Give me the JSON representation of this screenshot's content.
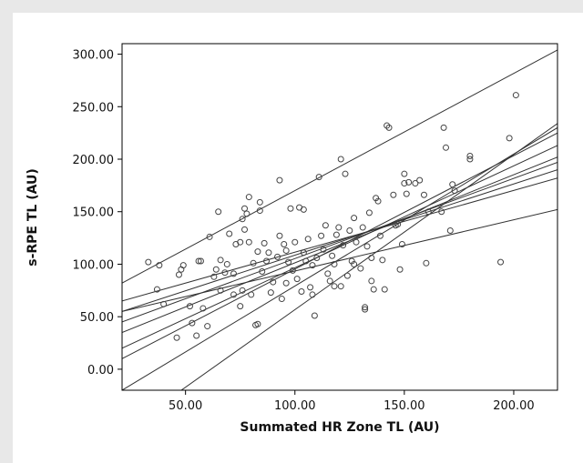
{
  "chart_data": {
    "type": "scatter",
    "xlabel": "Summated HR Zone TL (AU)",
    "ylabel": "s-RPE TL (AU)",
    "xlim": [
      21,
      220
    ],
    "ylim": [
      -20,
      310
    ],
    "x_ticks": [
      "50.00",
      "100.00",
      "150.00",
      "200.00"
    ],
    "x_tick_values": [
      50,
      100,
      150,
      200
    ],
    "y_ticks": [
      "0.00",
      "50.00",
      "100.00",
      "150.00",
      "200.00",
      "250.00",
      "300.00"
    ],
    "y_tick_values": [
      0,
      50,
      100,
      150,
      200,
      250,
      300
    ],
    "grid": false,
    "points": [
      [
        33,
        102
      ],
      [
        37,
        76
      ],
      [
        38,
        99
      ],
      [
        40,
        62
      ],
      [
        46,
        30
      ],
      [
        47,
        90
      ],
      [
        48,
        95
      ],
      [
        49,
        99
      ],
      [
        52,
        60
      ],
      [
        53,
        44
      ],
      [
        55,
        32
      ],
      [
        56,
        103
      ],
      [
        57,
        103
      ],
      [
        58,
        58
      ],
      [
        60,
        41
      ],
      [
        61,
        126
      ],
      [
        63,
        88
      ],
      [
        64,
        95
      ],
      [
        65,
        150
      ],
      [
        66,
        104
      ],
      [
        66,
        75
      ],
      [
        68,
        92
      ],
      [
        69,
        100
      ],
      [
        70,
        129
      ],
      [
        72,
        91
      ],
      [
        72,
        71
      ],
      [
        73,
        119
      ],
      [
        75,
        121
      ],
      [
        75,
        60
      ],
      [
        76,
        75
      ],
      [
        76,
        143
      ],
      [
        77,
        133
      ],
      [
        77,
        153
      ],
      [
        78,
        148
      ],
      [
        79,
        164
      ],
      [
        79,
        121
      ],
      [
        80,
        71
      ],
      [
        81,
        101
      ],
      [
        82,
        42
      ],
      [
        83,
        43
      ],
      [
        83,
        112
      ],
      [
        84,
        151
      ],
      [
        84,
        159
      ],
      [
        85,
        93
      ],
      [
        86,
        120
      ],
      [
        87,
        103
      ],
      [
        88,
        111
      ],
      [
        89,
        73
      ],
      [
        90,
        83
      ],
      [
        92,
        107
      ],
      [
        93,
        127
      ],
      [
        93,
        180
      ],
      [
        94,
        67
      ],
      [
        95,
        119
      ],
      [
        96,
        113
      ],
      [
        96,
        82
      ],
      [
        97,
        102
      ],
      [
        98,
        153
      ],
      [
        99,
        94
      ],
      [
        100,
        121
      ],
      [
        101,
        86
      ],
      [
        102,
        154
      ],
      [
        103,
        74
      ],
      [
        104,
        152
      ],
      [
        104,
        111
      ],
      [
        105,
        103
      ],
      [
        106,
        124
      ],
      [
        107,
        78
      ],
      [
        108,
        71
      ],
      [
        108,
        99
      ],
      [
        109,
        51
      ],
      [
        110,
        106
      ],
      [
        111,
        183
      ],
      [
        112,
        127
      ],
      [
        113,
        114
      ],
      [
        114,
        137
      ],
      [
        115,
        91
      ],
      [
        116,
        84
      ],
      [
        117,
        108
      ],
      [
        118,
        79
      ],
      [
        118,
        100
      ],
      [
        119,
        128
      ],
      [
        120,
        135
      ],
      [
        121,
        200
      ],
      [
        121,
        79
      ],
      [
        122,
        118
      ],
      [
        123,
        186
      ],
      [
        124,
        89
      ],
      [
        125,
        132
      ],
      [
        126,
        103
      ],
      [
        127,
        144
      ],
      [
        127,
        100
      ],
      [
        128,
        121
      ],
      [
        130,
        96
      ],
      [
        131,
        135
      ],
      [
        132,
        59
      ],
      [
        132,
        57
      ],
      [
        133,
        117
      ],
      [
        134,
        149
      ],
      [
        135,
        106
      ],
      [
        135,
        84
      ],
      [
        136,
        76
      ],
      [
        137,
        163
      ],
      [
        138,
        160
      ],
      [
        139,
        127
      ],
      [
        140,
        104
      ],
      [
        141,
        76
      ],
      [
        142,
        232
      ],
      [
        143,
        230
      ],
      [
        145,
        166
      ],
      [
        146,
        137
      ],
      [
        147,
        138
      ],
      [
        148,
        95
      ],
      [
        149,
        119
      ],
      [
        150,
        186
      ],
      [
        150,
        177
      ],
      [
        151,
        167
      ],
      [
        152,
        178
      ],
      [
        155,
        177
      ],
      [
        157,
        180
      ],
      [
        159,
        166
      ],
      [
        160,
        101
      ],
      [
        161,
        150
      ],
      [
        167,
        150
      ],
      [
        168,
        230
      ],
      [
        169,
        211
      ],
      [
        171,
        132
      ],
      [
        172,
        176
      ],
      [
        173,
        170
      ],
      [
        180,
        203
      ],
      [
        180,
        200
      ],
      [
        194,
        102
      ],
      [
        198,
        220
      ],
      [
        201,
        261
      ]
    ],
    "lines": [
      [
        [
          21,
          82
        ],
        [
          220,
          304
        ]
      ],
      [
        [
          21,
          -60
        ],
        [
          220,
          234
        ]
      ],
      [
        [
          21,
          -20
        ],
        [
          220,
          230
        ]
      ],
      [
        [
          21,
          10
        ],
        [
          220,
          225
        ]
      ],
      [
        [
          21,
          20
        ],
        [
          220,
          213
        ]
      ],
      [
        [
          21,
          35
        ],
        [
          220,
          202
        ]
      ],
      [
        [
          21,
          45
        ],
        [
          220,
          197
        ]
      ],
      [
        [
          21,
          55
        ],
        [
          220,
          190
        ]
      ],
      [
        [
          21,
          65
        ],
        [
          220,
          182
        ]
      ],
      [
        [
          21,
          55
        ],
        [
          220,
          152
        ]
      ]
    ],
    "colors": {
      "line": "#333333",
      "marker": "#444444",
      "axis": "#000000"
    }
  }
}
